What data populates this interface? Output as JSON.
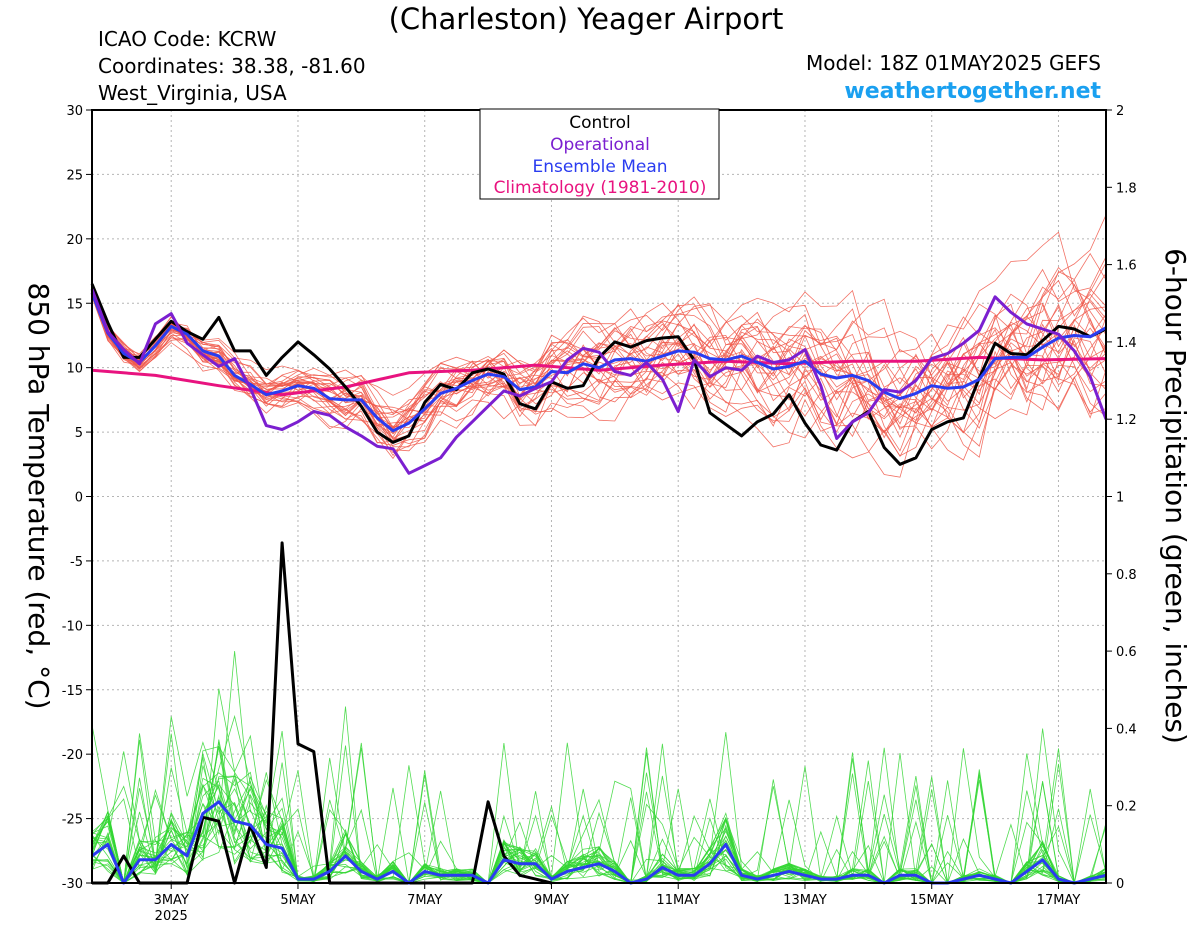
{
  "header": {
    "title": "(Charleston) Yeager Airport",
    "icao": "ICAO Code: KCRW",
    "coords": "Coordinates: 38.38, -81.60",
    "region": "West_Virginia, USA",
    "model": "Model: 18Z 01MAY2025 GEFS",
    "site": "weathertogether.net"
  },
  "legend": {
    "control": "Control",
    "operational": "Operational",
    "ensemble_mean": "Ensemble Mean",
    "climatology": "Climatology (1981-2010)"
  },
  "colors": {
    "control": "#000000",
    "operational": "#7b1fd0",
    "ensemble_mean": "#2a3cf0",
    "climatology": "#e8137f",
    "members_temp": "#f0584a",
    "members_precip": "#33d633",
    "site": "#1aa0f0"
  },
  "chart_data": {
    "type": "line",
    "ylabel": "850 hPa Temperature (red, °C)",
    "y2label": "6-hour Precipitation (green, inches)",
    "ylim": [
      -30,
      30
    ],
    "y2lim": [
      0,
      2
    ],
    "yticks": [
      -30,
      -25,
      -20,
      -15,
      -10,
      -5,
      0,
      5,
      10,
      15,
      20,
      25,
      30
    ],
    "y2ticks": [
      "0",
      "0.2",
      "0.4",
      "0.6",
      "0.8",
      "1",
      "1.2",
      "1.4",
      "1.6",
      "1.8",
      "2"
    ],
    "x_ticks": [
      "3MAY",
      "5MAY",
      "7MAY",
      "9MAY",
      "11MAY",
      "13MAY",
      "15MAY",
      "17MAY"
    ],
    "x_year": "2025",
    "xlim": [
      1.75,
      17.75
    ],
    "grid": "dotted",
    "legend_position": "top-center",
    "series": [
      {
        "name": "Control",
        "axis": "temperature",
        "x": [
          1.75,
          2.0,
          2.25,
          2.5,
          2.75,
          3.0,
          3.25,
          3.5,
          3.75,
          4.0,
          4.25,
          4.5,
          4.75,
          5.0,
          5.25,
          5.5,
          5.75,
          6.0,
          6.25,
          6.5,
          6.75,
          7.0,
          7.25,
          7.5,
          7.75,
          8.0,
          8.25,
          8.5,
          8.75,
          9.0,
          9.25,
          9.5,
          9.75,
          10.0,
          10.25,
          10.5,
          10.75,
          11.0,
          11.25,
          11.5,
          11.75,
          12.0,
          12.25,
          12.5,
          12.75,
          13.0,
          13.25,
          13.5,
          13.75,
          14.0,
          14.25,
          14.5,
          14.75,
          15.0,
          15.25,
          15.5,
          15.75,
          16.0,
          16.25,
          16.5,
          16.75,
          17.0,
          17.25,
          17.5,
          17.75
        ],
        "values": [
          16.5,
          13.5,
          10.8,
          10.8,
          12.2,
          13.6,
          12.8,
          12.2,
          13.9,
          11.3,
          11.3,
          9.4,
          10.8,
          12.0,
          11.0,
          9.9,
          8.5,
          7.0,
          5.0,
          4.2,
          4.7,
          7.3,
          8.7,
          8.3,
          9.6,
          9.9,
          9.5,
          7.2,
          6.8,
          8.9,
          8.4,
          8.6,
          10.8,
          12.0,
          11.6,
          12.1,
          12.3,
          12.4,
          10.6,
          6.5,
          5.6,
          4.7,
          5.8,
          6.4,
          7.9,
          5.7,
          4.0,
          3.6,
          5.8,
          6.6,
          3.8,
          2.5,
          3.0,
          5.2,
          5.8,
          6.1,
          9.2,
          11.9,
          11.1,
          11.0,
          12.1,
          13.2,
          13.0,
          12.4,
          13.0
        ]
      },
      {
        "name": "Operational",
        "axis": "temperature",
        "x": [
          1.75,
          2.0,
          2.25,
          2.5,
          2.75,
          3.0,
          3.25,
          3.5,
          3.75,
          4.0,
          4.25,
          4.5,
          4.75,
          5.0,
          5.25,
          5.5,
          5.75,
          6.0,
          6.25,
          6.5,
          6.75,
          7.0,
          7.25,
          7.5,
          7.75,
          8.0,
          8.25,
          8.5,
          8.75,
          9.0,
          9.25,
          9.5,
          9.75,
          10.0,
          10.25,
          10.5,
          10.75,
          11.0,
          11.25,
          11.5,
          11.75,
          12.0,
          12.25,
          12.5,
          12.75,
          13.0,
          13.25,
          13.5,
          13.75,
          14.0,
          14.25,
          14.5,
          14.75,
          15.0,
          15.25,
          15.5,
          15.75,
          16.0,
          16.25,
          16.5,
          16.75,
          17.0,
          17.25,
          17.5,
          17.75
        ],
        "values": [
          16.1,
          12.8,
          11.4,
          10.3,
          13.4,
          14.2,
          11.9,
          11.0,
          10.1,
          10.7,
          8.4,
          5.5,
          5.2,
          5.8,
          6.6,
          6.3,
          5.4,
          4.7,
          3.9,
          3.7,
          1.8,
          2.4,
          3.0,
          4.6,
          5.8,
          7.0,
          8.2,
          7.8,
          8.4,
          8.9,
          10.6,
          11.5,
          11.2,
          9.7,
          9.4,
          10.4,
          9.1,
          6.6,
          10.6,
          9.3,
          10.0,
          9.8,
          10.9,
          10.4,
          10.6,
          11.4,
          8.6,
          4.5,
          5.8,
          6.5,
          8.3,
          8.1,
          9.0,
          10.7,
          11.1,
          11.9,
          12.9,
          15.5,
          14.3,
          13.4,
          13.0,
          12.6,
          11.3,
          9.3,
          6.0
        ]
      },
      {
        "name": "Ensemble Mean",
        "axis": "temperature",
        "x": [
          1.75,
          2.0,
          2.25,
          2.5,
          2.75,
          3.0,
          3.25,
          3.5,
          3.75,
          4.0,
          4.25,
          4.5,
          4.75,
          5.0,
          5.25,
          5.5,
          5.75,
          6.0,
          6.25,
          6.5,
          6.75,
          7.0,
          7.25,
          7.5,
          7.75,
          8.0,
          8.25,
          8.5,
          8.75,
          9.0,
          9.25,
          9.5,
          9.75,
          10.0,
          10.25,
          10.5,
          10.75,
          11.0,
          11.25,
          11.5,
          11.75,
          12.0,
          12.25,
          12.5,
          12.75,
          13.0,
          13.25,
          13.5,
          13.75,
          14.0,
          14.25,
          14.5,
          14.75,
          15.0,
          15.25,
          15.5,
          15.75,
          16.0,
          16.25,
          16.5,
          16.75,
          17.0,
          17.25,
          17.5,
          17.75
        ],
        "values": [
          15.8,
          12.7,
          11.1,
          10.4,
          11.7,
          13.2,
          12.6,
          11.3,
          10.9,
          9.4,
          8.7,
          7.9,
          8.2,
          8.6,
          8.4,
          7.6,
          7.5,
          7.5,
          6.1,
          5.1,
          5.7,
          6.8,
          8.0,
          8.4,
          9.0,
          9.5,
          9.3,
          8.3,
          8.5,
          9.7,
          9.6,
          10.3,
          10.0,
          10.6,
          10.7,
          10.5,
          10.9,
          11.3,
          11.2,
          10.7,
          10.6,
          10.9,
          10.4,
          9.9,
          10.1,
          10.5,
          9.5,
          9.2,
          9.4,
          9.0,
          8.1,
          7.6,
          8.0,
          8.6,
          8.4,
          8.5,
          9.1,
          10.7,
          10.8,
          10.8,
          11.6,
          12.3,
          12.5,
          12.4,
          13.1
        ]
      },
      {
        "name": "Climatology (1981-2010)",
        "axis": "temperature",
        "x": [
          1.75,
          2.75,
          3.75,
          4.75,
          5.75,
          6.75,
          7.75,
          8.75,
          9.75,
          10.75,
          11.75,
          12.75,
          13.75,
          14.75,
          15.75,
          16.75,
          17.75
        ],
        "values": [
          9.8,
          9.4,
          8.6,
          7.9,
          8.5,
          9.6,
          9.8,
          10.2,
          9.8,
          10.2,
          10.5,
          10.3,
          10.5,
          10.5,
          10.8,
          10.6,
          10.7
        ]
      },
      {
        "name": "Control",
        "axis": "precipitation",
        "x": [
          1.75,
          2.0,
          2.25,
          2.5,
          2.75,
          3.0,
          3.25,
          3.5,
          3.75,
          4.0,
          4.25,
          4.5,
          4.75,
          5.0,
          5.25,
          5.5,
          5.75,
          6.0,
          6.25,
          6.5,
          6.75,
          7.0,
          7.25,
          7.5,
          7.75,
          8.0,
          8.25,
          8.5,
          8.75,
          9.0
        ],
        "values": [
          0,
          0,
          0.07,
          0,
          0,
          0,
          0,
          0.17,
          0.16,
          0,
          0.15,
          0.04,
          0.88,
          0.36,
          0.34,
          0,
          0,
          0,
          0,
          0,
          0,
          0,
          0,
          0,
          0,
          0.21,
          0.07,
          0.02,
          0.01,
          0
        ]
      },
      {
        "name": "Ensemble Mean",
        "axis": "precipitation",
        "x": [
          1.75,
          2.0,
          2.25,
          2.5,
          2.75,
          3.0,
          3.25,
          3.5,
          3.75,
          4.0,
          4.25,
          4.5,
          4.75,
          5.0,
          5.25,
          5.5,
          5.75,
          6.0,
          6.25,
          6.5,
          6.75,
          7.0,
          7.25,
          7.5,
          7.75,
          8.0,
          8.25,
          8.5,
          8.75,
          9.0,
          9.25,
          9.5,
          9.75,
          10.0,
          10.25,
          10.5,
          10.75,
          11.0,
          11.25,
          11.5,
          11.75,
          12.0,
          12.25,
          12.5,
          12.75,
          13.0,
          13.25,
          13.5,
          13.75,
          14.0,
          14.25,
          14.5,
          14.75,
          15.0,
          15.25,
          15.5,
          15.75,
          16.0,
          16.25,
          16.5,
          16.75,
          17.0,
          17.25,
          17.5,
          17.75
        ],
        "values": [
          0.07,
          0.1,
          0,
          0.06,
          0.06,
          0.1,
          0.07,
          0.18,
          0.21,
          0.16,
          0.15,
          0.1,
          0.09,
          0.01,
          0.01,
          0.03,
          0.07,
          0.03,
          0.01,
          0.03,
          0,
          0.03,
          0.02,
          0.02,
          0.02,
          0,
          0.06,
          0.05,
          0.05,
          0.01,
          0.03,
          0.04,
          0.05,
          0.03,
          0,
          0.01,
          0.04,
          0.02,
          0.02,
          0.05,
          0.1,
          0.02,
          0.01,
          0.02,
          0.03,
          0.02,
          0.01,
          0.01,
          0.02,
          0.02,
          0,
          0.02,
          0.02,
          0,
          0,
          0.01,
          0.02,
          0.01,
          0,
          0.03,
          0.06,
          0.01,
          0,
          0.01,
          0.02
        ]
      }
    ]
  }
}
